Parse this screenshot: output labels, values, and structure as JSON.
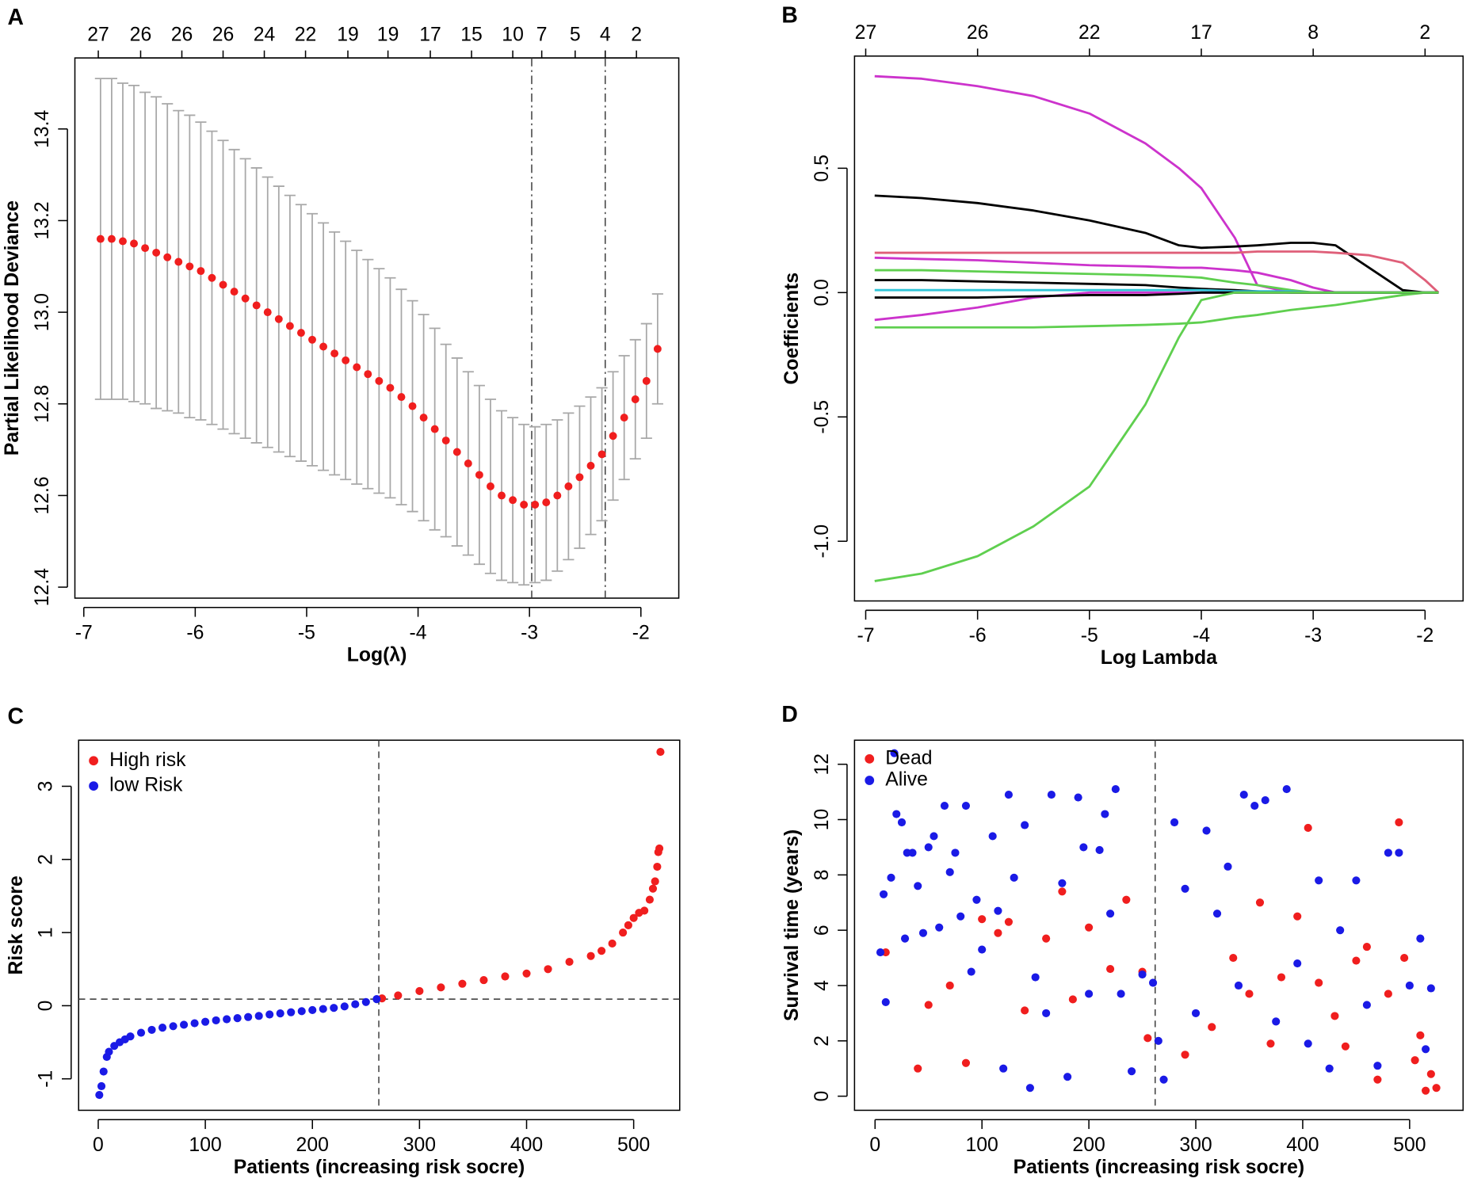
{
  "chart_data": [
    {
      "type": "errorbar",
      "panel": "A",
      "x_label": "Log(λ)",
      "y_label": "Partial Likelihood Deviance",
      "xlim": [
        -7.08,
        -1.66
      ],
      "ylim": [
        12.376,
        13.555
      ],
      "xticks": [
        -7,
        -6,
        -5,
        -4,
        -3,
        -2
      ],
      "yticks": [
        12.4,
        12.6,
        12.8,
        {
          "value": 13,
          "label": "13.0"
        },
        13.2,
        13.4
      ],
      "x2ticks": [
        {
          "value": -6.87,
          "label": "27"
        },
        {
          "value": -6.49,
          "label": "26"
        },
        {
          "value": -6.12,
          "label": "26"
        },
        {
          "value": -5.75,
          "label": "26"
        },
        {
          "value": -5.38,
          "label": "24"
        },
        {
          "value": -5.01,
          "label": "22"
        },
        {
          "value": -4.63,
          "label": "19"
        },
        {
          "value": -4.27,
          "label": "19"
        },
        {
          "value": -3.89,
          "label": "17"
        },
        {
          "value": -3.52,
          "label": "15"
        },
        {
          "value": -3.15,
          "label": "10"
        },
        {
          "value": -2.89,
          "label": "7"
        },
        {
          "value": -2.59,
          "label": "5"
        },
        {
          "value": -2.32,
          "label": "4"
        },
        {
          "value": -2.04,
          "label": "2"
        }
      ],
      "vlines": [
        -2.98,
        -2.32
      ],
      "color": "#f01e1e",
      "error_color": "#a8a8a8",
      "x": [
        -6.85,
        -6.75,
        -6.65,
        -6.55,
        -6.45,
        -6.35,
        -6.25,
        -6.15,
        -6.05,
        -5.95,
        -5.85,
        -5.75,
        -5.65,
        -5.55,
        -5.45,
        -5.35,
        -5.25,
        -5.15,
        -5.05,
        -4.95,
        -4.85,
        -4.75,
        -4.65,
        -4.55,
        -4.45,
        -4.35,
        -4.25,
        -4.15,
        -4.05,
        -3.95,
        -3.85,
        -3.75,
        -3.65,
        -3.55,
        -3.45,
        -3.35,
        -3.25,
        -3.15,
        -3.05,
        -2.95,
        -2.85,
        -2.75,
        -2.65,
        -2.55,
        -2.45,
        -2.35,
        -2.25,
        -2.15,
        -2.05,
        -1.95,
        -1.85
      ],
      "values": [
        13.16,
        13.16,
        13.155,
        13.15,
        13.14,
        13.13,
        13.12,
        13.11,
        13.1,
        13.09,
        13.075,
        13.06,
        13.045,
        13.03,
        13.015,
        13.0,
        12.985,
        12.97,
        12.955,
        12.94,
        12.925,
        12.91,
        12.895,
        12.88,
        12.865,
        12.85,
        12.835,
        12.815,
        12.795,
        12.77,
        12.745,
        12.72,
        12.695,
        12.67,
        12.645,
        12.62,
        12.6,
        12.59,
        12.58,
        12.58,
        12.585,
        12.6,
        12.62,
        12.64,
        12.665,
        12.69,
        12.73,
        12.77,
        12.81,
        12.85,
        12.92
      ],
      "errors": [
        0.35,
        0.35,
        0.345,
        0.345,
        0.34,
        0.34,
        0.335,
        0.33,
        0.33,
        0.325,
        0.32,
        0.315,
        0.31,
        0.305,
        0.3,
        0.295,
        0.29,
        0.285,
        0.28,
        0.275,
        0.27,
        0.265,
        0.26,
        0.255,
        0.25,
        0.245,
        0.24,
        0.235,
        0.23,
        0.225,
        0.22,
        0.21,
        0.205,
        0.2,
        0.195,
        0.19,
        0.185,
        0.18,
        0.175,
        0.17,
        0.17,
        0.165,
        0.16,
        0.155,
        0.15,
        0.145,
        0.14,
        0.135,
        0.13,
        0.125,
        0.12
      ]
    },
    {
      "type": "line",
      "panel": "B",
      "x_label": "Log Lambda",
      "y_label": "Coefficients",
      "xlim": [
        -7.1,
        -1.66
      ],
      "ylim": [
        -1.24,
        0.951
      ],
      "xticks": [
        -7,
        -6,
        -5,
        -4,
        -3,
        -2
      ],
      "yticks": [
        {
          "value": -1,
          "label": "-1.0"
        },
        -0.5,
        {
          "value": 0,
          "label": "0.0"
        },
        0.5
      ],
      "x2ticks": [
        {
          "value": -7,
          "label": "27"
        },
        {
          "value": -6,
          "label": "26"
        },
        {
          "value": -5,
          "label": "22"
        },
        {
          "value": -4,
          "label": "17"
        },
        {
          "value": -3,
          "label": "8"
        },
        {
          "value": -2,
          "label": "2"
        }
      ],
      "x": [
        -6.92,
        -6.5,
        -6,
        -5.5,
        -5,
        -4.5,
        -4.2,
        -4,
        -3.7,
        -3.5,
        -3.2,
        -3,
        -2.8,
        -2.5,
        -2.2,
        -2,
        -1.88
      ],
      "series": [
        {
          "color": "#cc33cc",
          "values": [
            0.87,
            0.86,
            0.83,
            0.79,
            0.72,
            0.6,
            0.5,
            0.42,
            0.22,
            0.03,
            0,
            0,
            0,
            0,
            0,
            0,
            0
          ]
        },
        {
          "color": "#000000",
          "values": [
            0.39,
            0.38,
            0.36,
            0.33,
            0.29,
            0.24,
            0.19,
            0.18,
            0.185,
            0.19,
            0.2,
            0.2,
            0.19,
            0.1,
            0.01,
            0,
            0
          ]
        },
        {
          "color": "#df5f79",
          "values": [
            0.16,
            0.16,
            0.16,
            0.16,
            0.16,
            0.16,
            0.16,
            0.16,
            0.16,
            0.165,
            0.165,
            0.165,
            0.16,
            0.15,
            0.12,
            0.05,
            0
          ]
        },
        {
          "color": "#cc33cc",
          "values": [
            0.14,
            0.135,
            0.13,
            0.12,
            0.11,
            0.105,
            0.1,
            0.1,
            0.09,
            0.08,
            0.05,
            0.02,
            0,
            0,
            0,
            0,
            0
          ]
        },
        {
          "color": "#5fcf4f",
          "values": [
            0.09,
            0.09,
            0.085,
            0.08,
            0.075,
            0.07,
            0.065,
            0.06,
            0.04,
            0.03,
            0.01,
            0,
            0,
            0,
            0,
            0,
            0
          ]
        },
        {
          "color": "#000000",
          "values": [
            0.05,
            0.05,
            0.045,
            0.04,
            0.035,
            0.03,
            0.02,
            0.015,
            0.01,
            0.005,
            0,
            0,
            0,
            0,
            0,
            0,
            0
          ]
        },
        {
          "color": "#2fc5d8",
          "values": [
            0.01,
            0.01,
            0.01,
            0.01,
            0.01,
            0.01,
            0.01,
            0.01,
            0.005,
            0.005,
            0.005,
            0,
            0,
            0,
            0,
            0,
            0
          ]
        },
        {
          "color": "#5fcf4f",
          "values": [
            -0.14,
            -0.14,
            -0.14,
            -0.14,
            -0.135,
            -0.13,
            -0.125,
            -0.12,
            -0.1,
            -0.09,
            -0.07,
            -0.06,
            -0.05,
            -0.03,
            -0.01,
            0,
            0
          ]
        },
        {
          "color": "#cc33cc",
          "values": [
            -0.11,
            -0.09,
            -0.06,
            -0.02,
            0,
            0,
            0,
            0,
            0,
            0,
            0,
            0,
            0,
            0,
            0,
            0,
            0
          ]
        },
        {
          "color": "#000000",
          "values": [
            -0.02,
            -0.02,
            -0.02,
            -0.015,
            -0.01,
            -0.01,
            -0.005,
            0,
            0,
            0,
            0,
            0,
            0,
            0,
            0,
            0,
            0
          ]
        },
        {
          "color": "#5fcf4f",
          "values": [
            -1.16,
            -1.13,
            -1.06,
            -0.94,
            -0.78,
            -0.45,
            -0.18,
            -0.03,
            0,
            0,
            0,
            0,
            0,
            0,
            0,
            0,
            0
          ]
        }
      ]
    },
    {
      "type": "scatter",
      "panel": "C",
      "x_label": "Patients (increasing risk socre)",
      "y_label": "Risk score",
      "xlim": [
        -18.3,
        543
      ],
      "ylim": [
        -1.43,
        3.63
      ],
      "xticks": [
        0,
        100,
        200,
        300,
        400,
        500
      ],
      "yticks": [
        -1,
        0,
        1,
        2,
        3
      ],
      "vlines": [
        262
      ],
      "hlines": [
        0.09
      ],
      "legend": "top-left",
      "series": [
        {
          "name": "High risk",
          "color": "#f01e1e",
          "x": [
            265,
            280,
            300,
            320,
            340,
            360,
            380,
            400,
            420,
            440,
            460,
            470,
            480,
            490,
            495,
            500,
            505,
            510,
            515,
            518,
            520,
            522,
            523,
            524,
            525
          ],
          "values": [
            0.1,
            0.14,
            0.2,
            0.25,
            0.3,
            0.35,
            0.4,
            0.44,
            0.5,
            0.6,
            0.68,
            0.75,
            0.85,
            1.0,
            1.1,
            1.2,
            1.27,
            1.3,
            1.45,
            1.6,
            1.7,
            1.9,
            2.1,
            2.15,
            3.47
          ]
        },
        {
          "name": "low Risk",
          "color": "#1a1ae6",
          "x": [
            1,
            3,
            5,
            8,
            10,
            15,
            20,
            25,
            30,
            40,
            50,
            60,
            70,
            80,
            90,
            100,
            110,
            120,
            130,
            140,
            150,
            160,
            170,
            180,
            190,
            200,
            210,
            220,
            230,
            240,
            250,
            260
          ],
          "values": [
            -1.22,
            -1.1,
            -0.9,
            -0.7,
            -0.63,
            -0.55,
            -0.5,
            -0.46,
            -0.42,
            -0.37,
            -0.33,
            -0.3,
            -0.28,
            -0.26,
            -0.24,
            -0.22,
            -0.2,
            -0.185,
            -0.17,
            -0.155,
            -0.14,
            -0.12,
            -0.105,
            -0.09,
            -0.075,
            -0.06,
            -0.045,
            -0.03,
            -0.01,
            0.02,
            0.05,
            0.09
          ]
        }
      ]
    },
    {
      "type": "scatter",
      "panel": "D",
      "x_label": "Patients (increasing risk socre)",
      "y_label": "Survival time (years)",
      "xlim": [
        -19.2,
        550
      ],
      "ylim": [
        -0.51,
        12.87
      ],
      "xticks": [
        0,
        100,
        200,
        300,
        400,
        500
      ],
      "yticks": [
        0,
        2,
        4,
        6,
        8,
        10,
        12
      ],
      "vlines": [
        262
      ],
      "legend": "top-left",
      "series": [
        {
          "name": "Dead",
          "color": "#f01e1e",
          "x": [
            10,
            40,
            50,
            70,
            85,
            100,
            115,
            125,
            140,
            160,
            175,
            185,
            200,
            220,
            235,
            250,
            255,
            290,
            315,
            335,
            350,
            360,
            370,
            380,
            395,
            405,
            415,
            430,
            440,
            450,
            460,
            470,
            480,
            490,
            495,
            505,
            510,
            515,
            520,
            525
          ],
          "values": [
            5.2,
            1.0,
            3.3,
            4.0,
            1.2,
            6.4,
            5.9,
            6.3,
            3.1,
            5.7,
            7.4,
            3.5,
            6.1,
            4.6,
            7.1,
            4.5,
            2.1,
            1.5,
            2.5,
            5.0,
            3.7,
            7.0,
            1.9,
            4.3,
            6.5,
            9.7,
            4.1,
            2.9,
            1.8,
            4.9,
            5.4,
            0.6,
            3.7,
            9.9,
            5.0,
            1.3,
            2.2,
            0.2,
            0.8,
            0.3
          ]
        },
        {
          "name": "Alive",
          "color": "#1a1ae6",
          "x": [
            5,
            8,
            10,
            15,
            18,
            20,
            25,
            28,
            30,
            35,
            40,
            45,
            50,
            55,
            60,
            65,
            70,
            75,
            80,
            85,
            90,
            95,
            100,
            110,
            115,
            120,
            125,
            130,
            140,
            145,
            150,
            160,
            165,
            175,
            180,
            190,
            195,
            200,
            210,
            215,
            220,
            225,
            230,
            240,
            250,
            260,
            265,
            270,
            280,
            290,
            300,
            310,
            320,
            330,
            340,
            345,
            355,
            365,
            375,
            385,
            395,
            405,
            415,
            425,
            435,
            450,
            460,
            470,
            480,
            490,
            500,
            510,
            515,
            520
          ],
          "values": [
            5.2,
            7.3,
            3.4,
            7.9,
            12.4,
            10.2,
            9.9,
            5.7,
            8.8,
            8.8,
            7.6,
            5.9,
            9.0,
            9.4,
            6.1,
            10.5,
            8.1,
            8.8,
            6.5,
            10.5,
            4.5,
            7.1,
            5.3,
            9.4,
            6.7,
            1.0,
            10.9,
            7.9,
            9.8,
            0.3,
            4.3,
            3.0,
            10.9,
            7.7,
            0.7,
            10.8,
            9.0,
            3.7,
            8.9,
            10.2,
            6.6,
            11.1,
            3.7,
            0.9,
            4.4,
            4.1,
            2.0,
            0.6,
            9.9,
            7.5,
            3.0,
            9.6,
            6.6,
            8.3,
            4.0,
            10.9,
            10.5,
            10.7,
            2.7,
            11.1,
            4.8,
            1.9,
            7.8,
            1.0,
            6.0,
            7.8,
            3.3,
            1.1,
            8.8,
            8.8,
            4.0,
            5.7,
            1.7,
            3.9
          ]
        }
      ]
    }
  ]
}
